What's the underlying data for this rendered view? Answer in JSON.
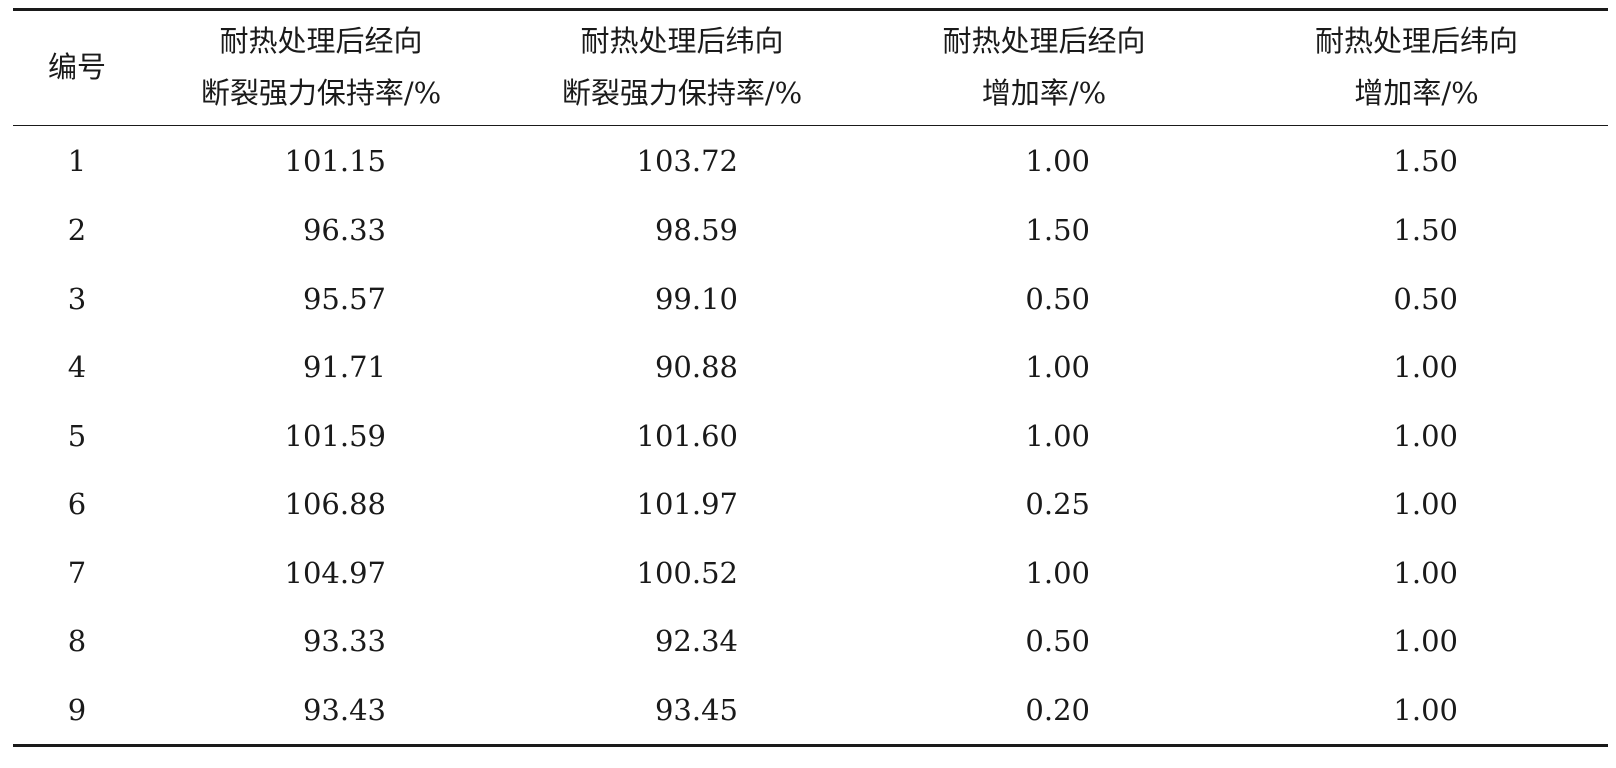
{
  "table": {
    "headers": [
      [
        "编号"
      ],
      [
        "耐热处理后经向",
        "断裂强力保持率/%"
      ],
      [
        "耐热处理后纬向",
        "断裂强力保持率/%"
      ],
      [
        "耐热处理后经向",
        "增加率/%"
      ],
      [
        "耐热处理后纬向",
        "增加率/%"
      ]
    ],
    "rows": [
      [
        "1",
        "101.15",
        "103.72",
        "1.00",
        "1.50"
      ],
      [
        "2",
        "96.33",
        "98.59",
        "1.50",
        "1.50"
      ],
      [
        "3",
        "95.57",
        "99.10",
        "0.50",
        "0.50"
      ],
      [
        "4",
        "91.71",
        "90.88",
        "1.00",
        "1.00"
      ],
      [
        "5",
        "101.59",
        "101.60",
        "1.00",
        "1.00"
      ],
      [
        "6",
        "106.88",
        "101.97",
        "0.25",
        "1.00"
      ],
      [
        "7",
        "104.97",
        "100.52",
        "1.00",
        "1.00"
      ],
      [
        "8",
        "93.33",
        "92.34",
        "0.50",
        "1.00"
      ],
      [
        "9",
        "93.43",
        "93.45",
        "0.20",
        "1.00"
      ]
    ]
  }
}
